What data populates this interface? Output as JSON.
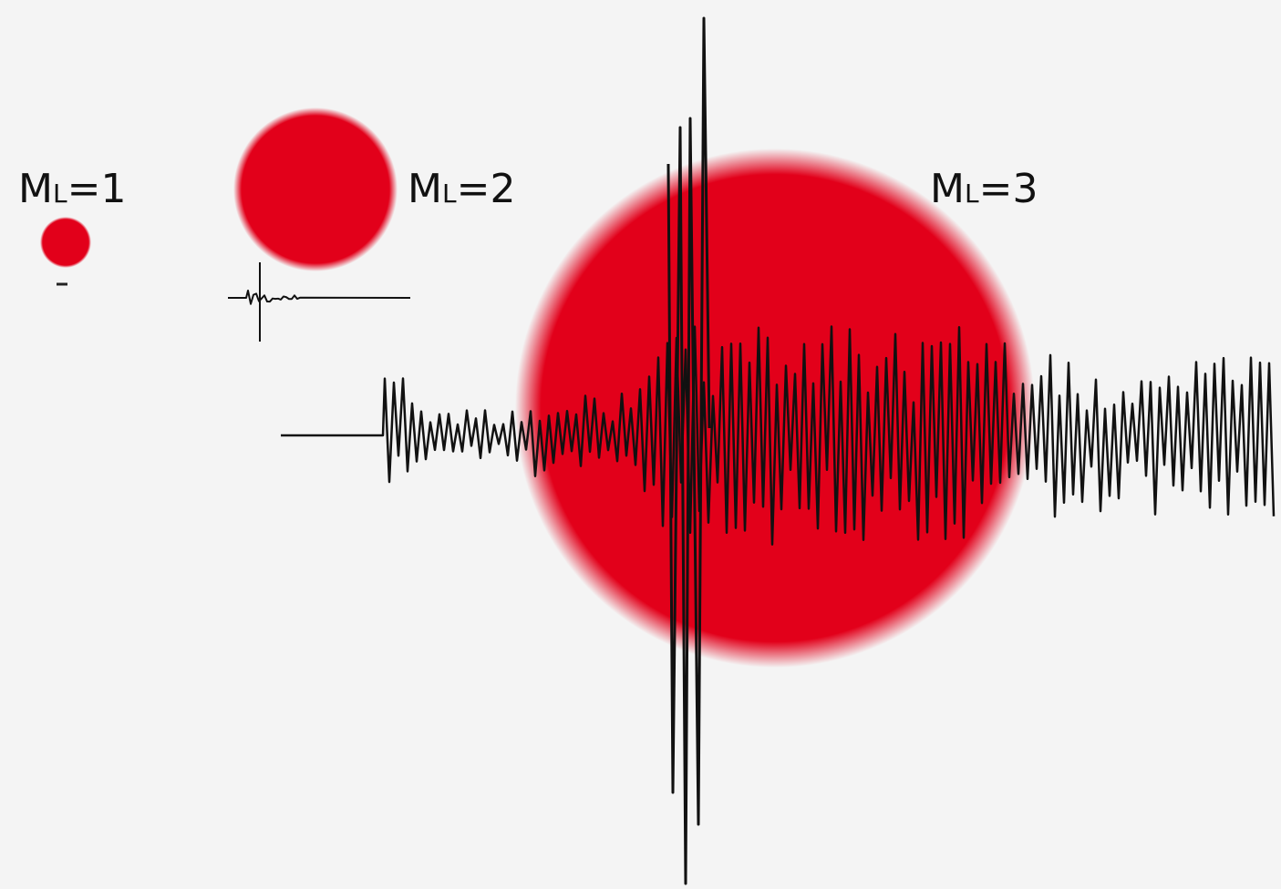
{
  "labels": [
    {
      "symbol": "M",
      "subscript": "L",
      "suffix": "=1"
    },
    {
      "symbol": "M",
      "subscript": "L",
      "suffix": "=2"
    },
    {
      "symbol": "M",
      "subscript": "L",
      "suffix": "=3"
    }
  ]
}
